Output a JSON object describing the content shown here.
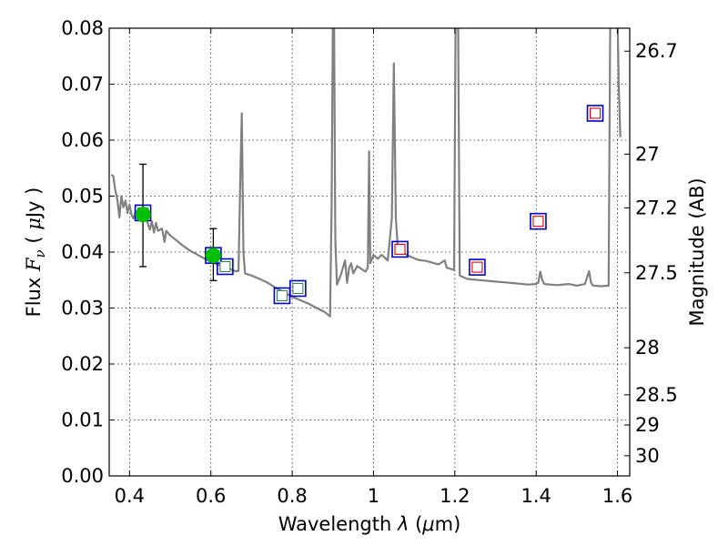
{
  "chart_data": {
    "type": "scatter",
    "xlabel_parts": [
      "Wavelength  ",
      "λ",
      " (",
      "μ",
      "m)"
    ],
    "ylabel_parts": [
      "Flux  ",
      "F",
      "ν",
      "  ( ",
      "μ",
      "Jy )"
    ],
    "y2label": "Magnitude (AB)",
    "xlim": [
      0.35,
      1.63
    ],
    "ylim": [
      0.0,
      0.08
    ],
    "grid": true,
    "x_ticks": [
      0.4,
      0.6,
      0.8,
      1.0,
      1.2,
      1.4,
      1.6
    ],
    "x_tick_labels": [
      "0.4",
      "0.6",
      "0.8",
      "1",
      "1.2",
      "1.4",
      "1.6"
    ],
    "y_ticks": [
      0.0,
      0.01,
      0.02,
      0.03,
      0.04,
      0.05,
      0.06,
      0.07,
      0.08
    ],
    "y_tick_labels": [
      "0.00",
      "0.01",
      "0.02",
      "0.03",
      "0.04",
      "0.05",
      "0.06",
      "0.07",
      "0.08"
    ],
    "magnitude_ticks": [
      {
        "label": "26.7",
        "flux": 0.0759
      },
      {
        "label": "27",
        "flux": 0.0575
      },
      {
        "label": "27.2",
        "flux": 0.0479
      },
      {
        "label": "27.5",
        "flux": 0.0363
      },
      {
        "label": "28",
        "flux": 0.0229
      },
      {
        "label": "28.5",
        "flux": 0.0145
      },
      {
        "label": "29",
        "flux": 0.0091
      },
      {
        "label": "30",
        "flux": 0.0036
      }
    ],
    "colors": {
      "model": "#808080",
      "observed": "#00bf00",
      "model_box": "#0000cc",
      "model_inner_optical": "#2e8b57",
      "model_inner_nir": "#e60000",
      "errorbar": "#000000"
    },
    "model_spectrum": [
      [
        0.355,
        0.0538
      ],
      [
        0.36,
        0.0536
      ],
      [
        0.365,
        0.051
      ],
      [
        0.37,
        0.0495
      ],
      [
        0.375,
        0.0462
      ],
      [
        0.38,
        0.05
      ],
      [
        0.385,
        0.048
      ],
      [
        0.39,
        0.0492
      ],
      [
        0.395,
        0.047
      ],
      [
        0.4,
        0.0485
      ],
      [
        0.405,
        0.0466
      ],
      [
        0.41,
        0.046
      ],
      [
        0.415,
        0.0473
      ],
      [
        0.42,
        0.0458
      ],
      [
        0.425,
        0.047
      ],
      [
        0.43,
        0.0465
      ],
      [
        0.44,
        0.0462
      ],
      [
        0.45,
        0.044
      ],
      [
        0.455,
        0.0455
      ],
      [
        0.46,
        0.0435
      ],
      [
        0.465,
        0.0452
      ],
      [
        0.47,
        0.0438
      ],
      [
        0.48,
        0.0442
      ],
      [
        0.486,
        0.0418
      ],
      [
        0.49,
        0.0438
      ],
      [
        0.5,
        0.043
      ],
      [
        0.51,
        0.0424
      ],
      [
        0.52,
        0.0418
      ],
      [
        0.53,
        0.0412
      ],
      [
        0.54,
        0.0407
      ],
      [
        0.55,
        0.0402
      ],
      [
        0.56,
        0.0398
      ],
      [
        0.57,
        0.0394
      ],
      [
        0.58,
        0.039
      ],
      [
        0.59,
        0.0386
      ],
      [
        0.6,
        0.0383
      ],
      [
        0.61,
        0.038
      ],
      [
        0.62,
        0.0377
      ],
      [
        0.63,
        0.0374
      ],
      [
        0.64,
        0.0371
      ],
      [
        0.65,
        0.0369
      ],
      [
        0.66,
        0.0366
      ],
      [
        0.668,
        0.0366
      ],
      [
        0.672,
        0.052
      ],
      [
        0.676,
        0.0648
      ],
      [
        0.68,
        0.04
      ],
      [
        0.684,
        0.0362
      ],
      [
        0.7,
        0.0358
      ],
      [
        0.72,
        0.0352
      ],
      [
        0.74,
        0.0345
      ],
      [
        0.76,
        0.0336
      ],
      [
        0.78,
        0.0328
      ],
      [
        0.8,
        0.032
      ],
      [
        0.82,
        0.0314
      ],
      [
        0.84,
        0.0308
      ],
      [
        0.86,
        0.03
      ],
      [
        0.88,
        0.0293
      ],
      [
        0.893,
        0.0285
      ],
      [
        0.897,
        0.048
      ],
      [
        0.9,
        0.082
      ],
      [
        0.903,
        0.082
      ],
      [
        0.906,
        0.042
      ],
      [
        0.91,
        0.0342
      ],
      [
        0.92,
        0.036
      ],
      [
        0.93,
        0.0385
      ],
      [
        0.935,
        0.0345
      ],
      [
        0.94,
        0.0372
      ],
      [
        0.945,
        0.038
      ],
      [
        0.95,
        0.0362
      ],
      [
        0.96,
        0.0375
      ],
      [
        0.97,
        0.037
      ],
      [
        0.98,
        0.0365
      ],
      [
        0.986,
        0.0372
      ],
      [
        0.989,
        0.058
      ],
      [
        0.992,
        0.038
      ],
      [
        1.0,
        0.0395
      ],
      [
        1.01,
        0.0388
      ],
      [
        1.02,
        0.0395
      ],
      [
        1.035,
        0.0385
      ],
      [
        1.045,
        0.046
      ],
      [
        1.05,
        0.0737
      ],
      [
        1.055,
        0.046
      ],
      [
        1.06,
        0.0405
      ],
      [
        1.07,
        0.04
      ],
      [
        1.09,
        0.0392
      ],
      [
        1.11,
        0.0386
      ],
      [
        1.13,
        0.0384
      ],
      [
        1.15,
        0.038
      ],
      [
        1.16,
        0.0378
      ],
      [
        1.175,
        0.0385
      ],
      [
        1.18,
        0.0372
      ],
      [
        1.19,
        0.037
      ],
      [
        1.198,
        0.0368
      ],
      [
        1.202,
        0.082
      ],
      [
        1.208,
        0.082
      ],
      [
        1.212,
        0.0358
      ],
      [
        1.23,
        0.0352
      ],
      [
        1.26,
        0.035
      ],
      [
        1.29,
        0.0348
      ],
      [
        1.32,
        0.0346
      ],
      [
        1.35,
        0.0344
      ],
      [
        1.38,
        0.0342
      ],
      [
        1.4,
        0.0343
      ],
      [
        1.405,
        0.0345
      ],
      [
        1.41,
        0.0365
      ],
      [
        1.415,
        0.035
      ],
      [
        1.42,
        0.0343
      ],
      [
        1.45,
        0.0341
      ],
      [
        1.48,
        0.0343
      ],
      [
        1.5,
        0.034
      ],
      [
        1.52,
        0.0343
      ],
      [
        1.53,
        0.0366
      ],
      [
        1.535,
        0.0345
      ],
      [
        1.54,
        0.034
      ],
      [
        1.56,
        0.0339
      ],
      [
        1.578,
        0.034
      ],
      [
        1.582,
        0.082
      ],
      [
        1.6,
        0.082
      ],
      [
        1.603,
        0.07
      ],
      [
        1.607,
        0.0605
      ]
    ],
    "observed_points": [
      {
        "x": 0.433,
        "y": 0.0467,
        "yerr_low": 0.0374,
        "yerr_high": 0.0557
      },
      {
        "x": 0.606,
        "y": 0.0394,
        "yerr_low": 0.0349,
        "yerr_high": 0.0442
      }
    ],
    "model_photometry": [
      {
        "x": 0.433,
        "y": 0.047,
        "band": "optical"
      },
      {
        "x": 0.606,
        "y": 0.0394,
        "band": "optical"
      },
      {
        "x": 0.635,
        "y": 0.0374,
        "band": "optical"
      },
      {
        "x": 0.775,
        "y": 0.0322,
        "band": "optical"
      },
      {
        "x": 0.814,
        "y": 0.0335,
        "band": "optical"
      },
      {
        "x": 1.065,
        "y": 0.0405,
        "band": "nir"
      },
      {
        "x": 1.255,
        "y": 0.0373,
        "band": "nir"
      },
      {
        "x": 1.405,
        "y": 0.0455,
        "band": "nir"
      },
      {
        "x": 1.545,
        "y": 0.0648,
        "band": "nir"
      }
    ]
  }
}
